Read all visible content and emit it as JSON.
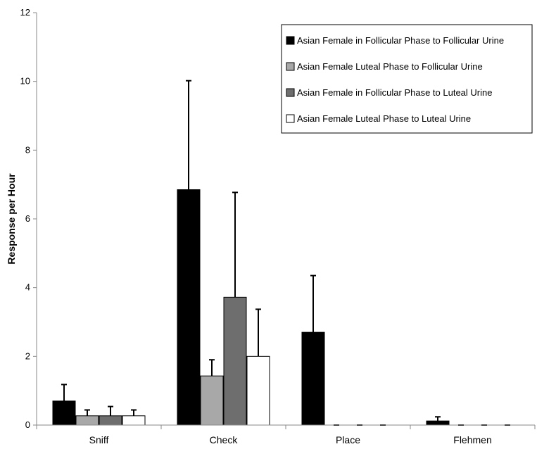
{
  "chart_data": {
    "type": "bar",
    "ylabel": "Response per Hour",
    "ylim": [
      0,
      12
    ],
    "yticks": [
      0,
      2,
      4,
      6,
      8,
      10,
      12
    ],
    "categories": [
      "Sniff",
      "Check",
      "Place",
      "Flehmen"
    ],
    "series": [
      {
        "name": "Asian Female in Follicular Phase to Follicular Urine",
        "color": "#000000",
        "values": [
          0.7,
          6.85,
          2.7,
          0.12
        ],
        "errors": [
          0.48,
          3.17,
          1.65,
          0.12
        ]
      },
      {
        "name": "Asian Female Luteal Phase to Follicular Urine",
        "color": "#a8a8a8",
        "values": [
          0.27,
          1.43,
          0,
          0
        ],
        "errors": [
          0.17,
          0.47,
          0,
          0
        ]
      },
      {
        "name": "Asian Female in Follicular Phase to Luteal Urine",
        "color": "#6e6e6e",
        "values": [
          0.27,
          3.72,
          0,
          0
        ],
        "errors": [
          0.27,
          3.05,
          0,
          0
        ]
      },
      {
        "name": "Asian Female Luteal Phase to Luteal Urine",
        "color": "#ffffff",
        "values": [
          0.27,
          2.0,
          0,
          0
        ],
        "errors": [
          0.17,
          1.37,
          0,
          0
        ]
      }
    ],
    "legend_position": "top-right",
    "grid": false
  }
}
